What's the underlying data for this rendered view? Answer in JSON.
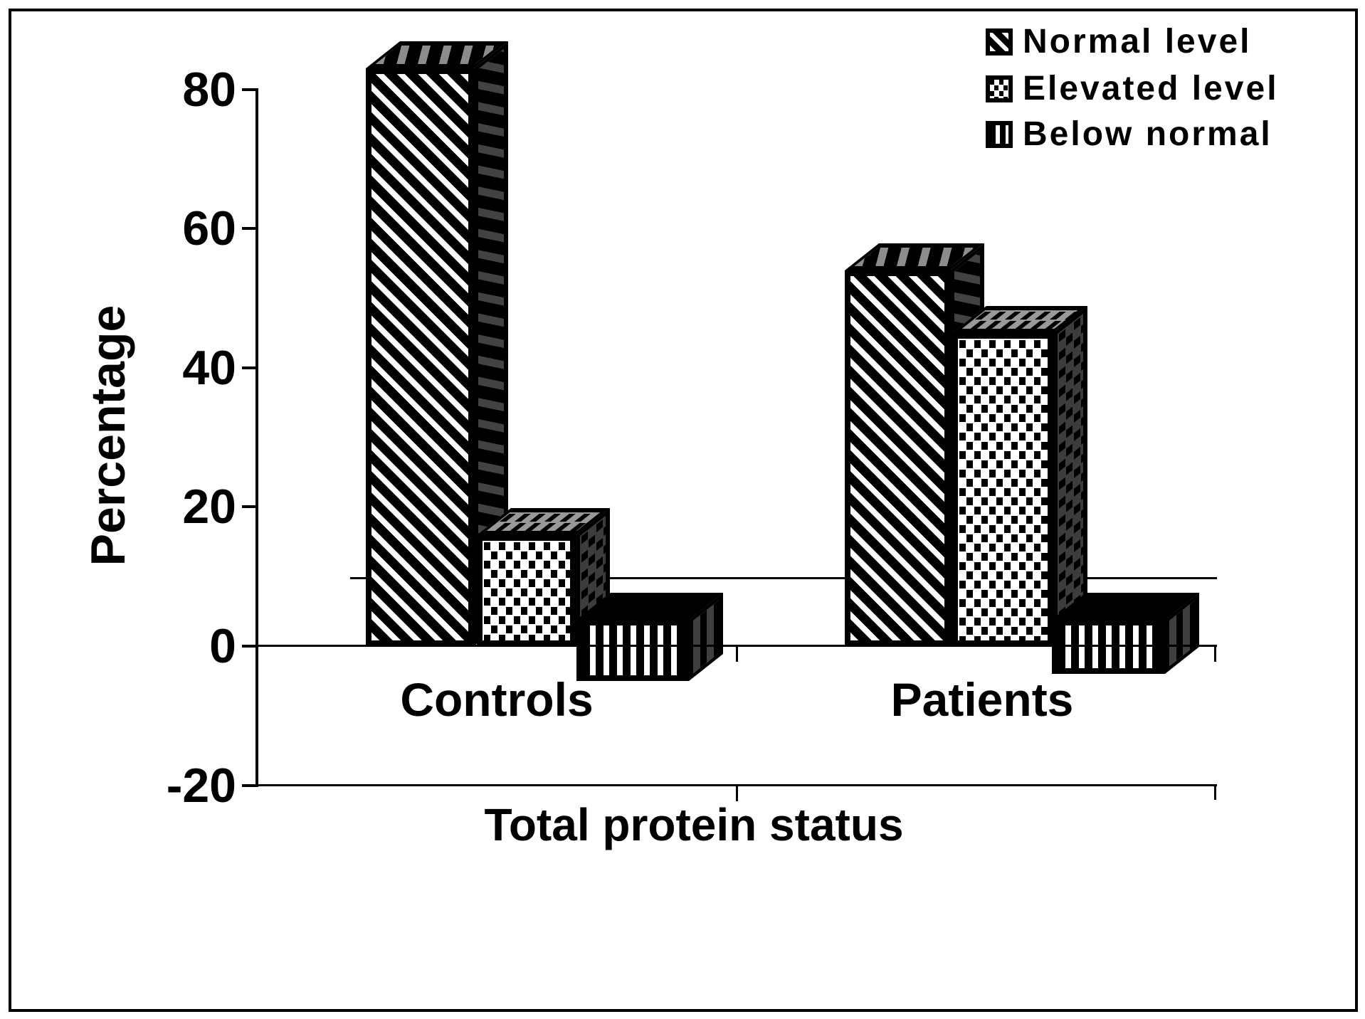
{
  "figure": {
    "type": "3d-bar-chart",
    "background_color": "#ffffff",
    "frame_color": "#000000"
  },
  "y_axis": {
    "title": "Percentage",
    "tick_labels": [
      "80",
      "60",
      "40",
      "20",
      "0",
      "-20"
    ],
    "tick_values": [
      80,
      60,
      40,
      20,
      0,
      -20
    ]
  },
  "x_axis": {
    "title": "Total protein status",
    "categories": [
      "Controls",
      "Patients"
    ]
  },
  "legend": {
    "position": "top-right",
    "items": [
      {
        "label": "Normal level",
        "pattern": "diagonal-hatch"
      },
      {
        "label": "Elevated level",
        "pattern": "square-dots"
      },
      {
        "label": "Below normal",
        "pattern": "vertical-stripes"
      }
    ]
  },
  "chart_data": {
    "type": "bar",
    "categories": [
      "Controls",
      "Patients"
    ],
    "series": [
      {
        "name": "Normal level",
        "pattern": "diagonal-hatch",
        "values": [
          83,
          54
        ]
      },
      {
        "name": "Elevated level",
        "pattern": "square-dots",
        "values": [
          16,
          45
        ]
      },
      {
        "name": "Below normal",
        "pattern": "vertical-stripes",
        "values": [
          -5,
          -4
        ]
      }
    ],
    "title": "",
    "xlabel": "Total protein status",
    "ylabel": "Percentage",
    "ylim": [
      -20,
      85
    ],
    "ytick_step": 20,
    "reference_line_y": 10,
    "grid": false,
    "legend_position": "top-right",
    "style": "monochrome-3d-patterned"
  },
  "colors": {
    "ink": "#000000",
    "top_face_hatch_gray": "#8c8c8c",
    "side_face_hatch_gray": "#424242",
    "top_face_dots_gray": "#999999",
    "side_face_dots_gray": "#3c3c3c",
    "side_face_stripes_gray": "#3f3f3f"
  }
}
